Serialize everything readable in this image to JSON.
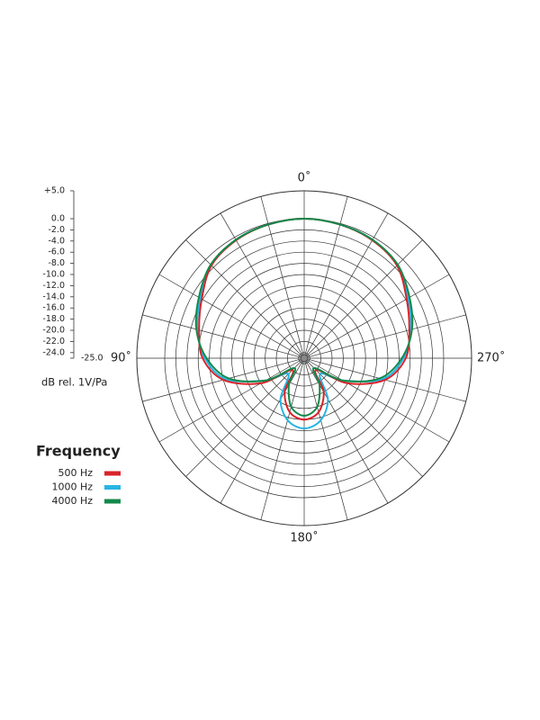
{
  "chart_data": {
    "type": "polar",
    "theta": [
      0,
      15,
      30,
      45,
      60,
      75,
      90,
      105,
      120,
      135,
      150,
      165,
      180,
      195,
      210,
      225,
      240,
      255,
      270,
      285,
      300,
      315,
      330,
      345
    ],
    "series": [
      {
        "name": "1000 Hz",
        "color": "#27b5e3",
        "values": [
          0,
          -0.2,
          -0.5,
          -1.4,
          -3.5,
          -5.2,
          -7.2,
          -10.5,
          -17,
          -21,
          -16.5,
          -13.5,
          -12.4,
          -13.5,
          -16.5,
          -21,
          -17,
          -10.5,
          -7.2,
          -5.2,
          -3.5,
          -1.4,
          -0.5,
          -0.2
        ]
      },
      {
        "name": "500 Hz",
        "color": "#d9232a",
        "values": [
          0,
          -0.2,
          -0.6,
          -1.5,
          -3.8,
          -5.5,
          -6.8,
          -10,
          -16,
          -22,
          -18,
          -15,
          -14,
          -15,
          -18,
          -22,
          -16,
          -10,
          -6.8,
          -5.5,
          -3.8,
          -1.5,
          -0.6,
          -0.2
        ]
      },
      {
        "name": "4000 Hz",
        "color": "#13894a",
        "values": [
          0,
          -0.2,
          -0.5,
          -1.3,
          -3.2,
          -5,
          -7.5,
          -11,
          -17,
          -22.5,
          -19.5,
          -16,
          -14.7,
          -16,
          -19.5,
          -22.5,
          -17,
          -11,
          -7.5,
          -5,
          -3.2,
          -1.3,
          -0.5,
          -0.2
        ]
      }
    ],
    "legend_order": [
      1,
      0,
      2
    ],
    "rlim": [
      -25,
      5
    ],
    "rticks": [
      {
        "value": 5,
        "label": "+5.0"
      },
      {
        "value": 0,
        "label": "0.0"
      },
      {
        "value": -2,
        "label": "-2.0"
      },
      {
        "value": -4,
        "label": "-4.0"
      },
      {
        "value": -6,
        "label": "-6.0"
      },
      {
        "value": -8,
        "label": "-8.0"
      },
      {
        "value": -10,
        "label": "-10.0"
      },
      {
        "value": -12,
        "label": "-12.0"
      },
      {
        "value": -14,
        "label": "-14.0"
      },
      {
        "value": -16,
        "label": "-16.0"
      },
      {
        "value": -18,
        "label": "-18.0"
      },
      {
        "value": -20,
        "label": "-20.0"
      },
      {
        "value": -22,
        "label": "-22.0"
      },
      {
        "value": -24,
        "label": "-24.0"
      },
      {
        "value": -25,
        "label": "-25.0"
      }
    ],
    "angle_ticks": [
      {
        "value": 0,
        "label": "0˚"
      },
      {
        "value": 90,
        "label": "90˚"
      },
      {
        "value": 180,
        "label": "180˚"
      },
      {
        "value": 270,
        "label": "270˚"
      }
    ],
    "r_axis_label": "dB rel. 1V/Pa",
    "legend_title": "Frequency"
  }
}
